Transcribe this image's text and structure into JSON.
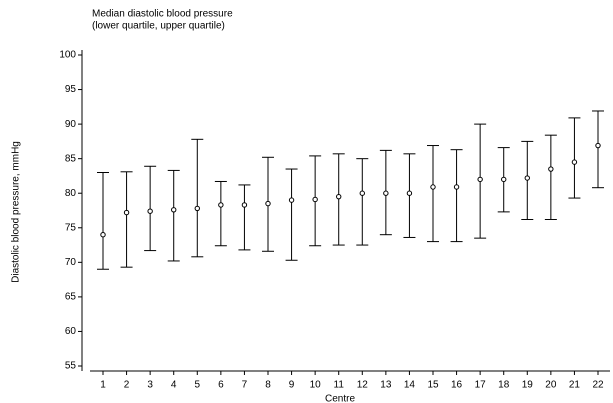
{
  "chart_data": {
    "type": "errorbar",
    "title": "Median diastolic blood pressure",
    "subtitle": "(lower quartile, upper quartile)",
    "y_label": "Diastolic blood pressure, mmHg",
    "x_label": "Centre",
    "categories": [
      "1",
      "2",
      "3",
      "4",
      "5",
      "6",
      "7",
      "8",
      "9",
      "10",
      "11",
      "12",
      "13",
      "14",
      "15",
      "16",
      "17",
      "18",
      "19",
      "20",
      "21",
      "22"
    ],
    "median": [
      74,
      77.2,
      77.4,
      77.6,
      77.8,
      78.3,
      78.3,
      78.5,
      79,
      79.1,
      79.5,
      80,
      80,
      80,
      80.9,
      80.9,
      82,
      82,
      82.2,
      83.5,
      84.5,
      86.9
    ],
    "lower_quartile": [
      69,
      69.3,
      71.7,
      70.2,
      70.8,
      72.4,
      71.8,
      71.6,
      70.3,
      72.4,
      72.5,
      72.5,
      74,
      73.6,
      73,
      73,
      73.5,
      77.3,
      76.2,
      76.2,
      79.3,
      80.8
    ],
    "upper_quartile": [
      83,
      83.1,
      83.9,
      83.3,
      87.8,
      81.7,
      81.2,
      85.2,
      83.5,
      85.4,
      85.7,
      85,
      86.2,
      85.7,
      86.9,
      86.3,
      90,
      86.6,
      87.5,
      88.4,
      90.9,
      91.9
    ],
    "color": "#000000",
    "ylim": [
      55,
      100
    ],
    "yticks": [
      55,
      60,
      65,
      70,
      75,
      80,
      85,
      90,
      95,
      100
    ]
  }
}
